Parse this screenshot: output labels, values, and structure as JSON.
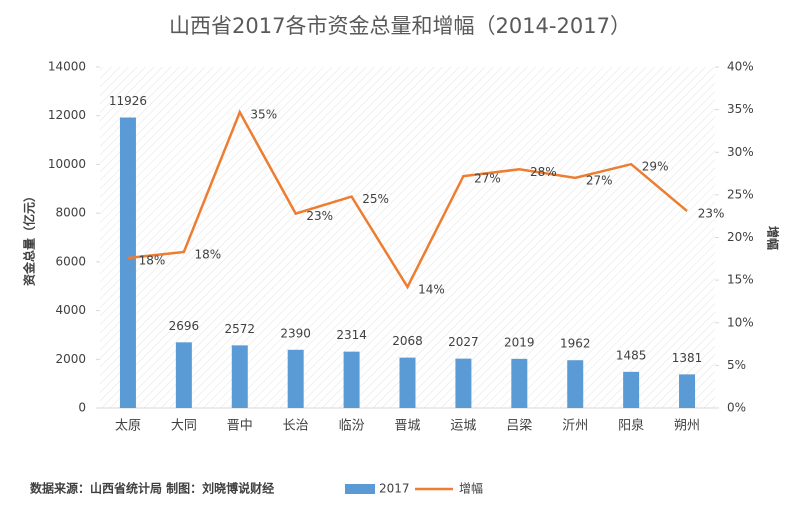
{
  "chart_data": {
    "type": "combo",
    "title": "山西省2017各市资金总量和增幅（2014-2017）",
    "y_label": "资金总量（亿元）",
    "y2_label": "增幅",
    "source": "数据来源：山西省统计局 制图：刘晓博说财经",
    "categories": [
      "太原",
      "大同",
      "晋中",
      "长治",
      "临汾",
      "晋城",
      "运城",
      "吕梁",
      "沂州",
      "阳泉",
      "朔州"
    ],
    "series": [
      {
        "name": "2017",
        "type": "bar",
        "color": "#5b9bd5",
        "values": [
          11926,
          2696,
          2572,
          2390,
          2314,
          2068,
          2027,
          2019,
          1962,
          1485,
          1381
        ]
      },
      {
        "name": "增幅",
        "type": "line",
        "axis": "y2",
        "color": "#ed7d31",
        "values": [
          17.6,
          18.3,
          34.7,
          22.8,
          24.8,
          14.2,
          27.2,
          28.0,
          27.0,
          28.6,
          23.1
        ],
        "value_labels": [
          "18%",
          "18%",
          "35%",
          "23%",
          "25%",
          "14%",
          "27%",
          "28%",
          "27%",
          "29%",
          "23%"
        ]
      }
    ],
    "ylim": [
      0,
      14000
    ],
    "yticks": [
      0,
      2000,
      4000,
      6000,
      8000,
      10000,
      12000,
      14000
    ],
    "y2lim": [
      0,
      40
    ],
    "y2ticks": [
      {
        "value": 0,
        "label": "0%"
      },
      {
        "value": 5,
        "label": "5%"
      },
      {
        "value": 10,
        "label": "10%"
      },
      {
        "value": 15,
        "label": "15%"
      },
      {
        "value": 20,
        "label": "20%"
      },
      {
        "value": 25,
        "label": "25%"
      },
      {
        "value": 30,
        "label": "30%"
      },
      {
        "value": 35,
        "label": "35%"
      },
      {
        "value": 40,
        "label": "40%"
      }
    ],
    "legend": "bottom"
  }
}
